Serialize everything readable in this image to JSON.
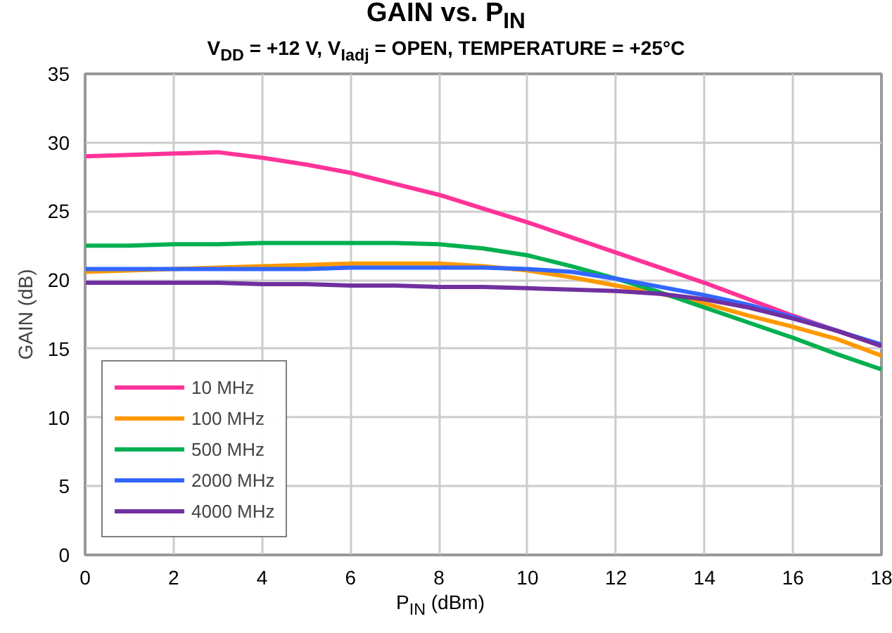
{
  "chart_data": {
    "type": "line",
    "title": "GAIN vs. P$_{IN}$",
    "subtitle": "V$_{DD}$ = +12 V, V$_{Iadj}$ = OPEN, TEMPERATURE = +25°C",
    "xlabel": "P$_{IN}$ (dBm)",
    "ylabel": "GAIN (dB)",
    "x": [
      0,
      1,
      2,
      3,
      4,
      5,
      6,
      7,
      8,
      9,
      10,
      11,
      12,
      13,
      14,
      15,
      16,
      17,
      18
    ],
    "series": [
      {
        "name": "10 MHz",
        "color": "#ff3399",
        "values": [
          29.0,
          29.1,
          29.2,
          29.3,
          28.9,
          28.4,
          27.8,
          27.0,
          26.2,
          25.2,
          24.2,
          23.1,
          22.0,
          20.9,
          19.8,
          18.6,
          17.4,
          16.3,
          15.2
        ]
      },
      {
        "name": "100 MHz",
        "color": "#ff9900",
        "values": [
          20.6,
          20.7,
          20.8,
          20.9,
          21.0,
          21.1,
          21.2,
          21.2,
          21.2,
          21.0,
          20.7,
          20.2,
          19.6,
          19.0,
          18.3,
          17.4,
          16.6,
          15.7,
          14.5
        ]
      },
      {
        "name": "500 MHz",
        "color": "#00b050",
        "values": [
          22.5,
          22.5,
          22.6,
          22.6,
          22.7,
          22.7,
          22.7,
          22.7,
          22.6,
          22.3,
          21.8,
          21.0,
          20.1,
          19.1,
          18.0,
          16.9,
          15.8,
          14.6,
          13.5
        ]
      },
      {
        "name": "2000 MHz",
        "color": "#3366ff",
        "values": [
          20.8,
          20.8,
          20.8,
          20.8,
          20.8,
          20.8,
          20.9,
          20.9,
          20.9,
          20.9,
          20.8,
          20.6,
          20.1,
          19.5,
          18.9,
          18.2,
          17.3,
          16.3,
          15.3
        ]
      },
      {
        "name": "4000 MHz",
        "color": "#7030a0",
        "values": [
          19.8,
          19.8,
          19.8,
          19.8,
          19.7,
          19.7,
          19.6,
          19.6,
          19.5,
          19.5,
          19.4,
          19.3,
          19.2,
          19.0,
          18.6,
          18.0,
          17.2,
          16.3,
          15.2
        ]
      }
    ],
    "xlim": [
      0,
      18
    ],
    "xticks": [
      0,
      2,
      4,
      6,
      8,
      10,
      12,
      14,
      16,
      18
    ],
    "ylim": [
      0,
      35
    ],
    "yticks": [
      0,
      5,
      10,
      15,
      20,
      25,
      30,
      35
    ],
    "grid": true,
    "legend": "bottom left",
    "marker": "none",
    "line_style": "solid"
  }
}
